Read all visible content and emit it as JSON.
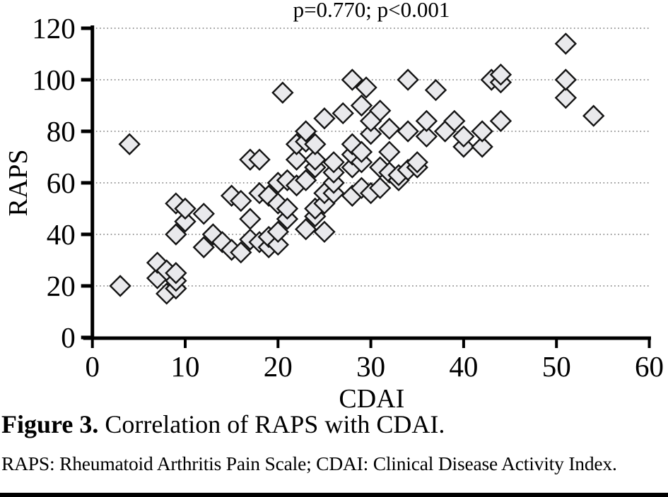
{
  "figure": {
    "title": "p=0.770; p<0.001",
    "caption_label": "Figure 3.",
    "caption_text": " Correlation of RAPS with CDAI.",
    "caption_note": "RAPS: Rheumatoid Arthritis Pain Scale; CDAI: Clinical Disease Activity Index."
  },
  "colors": {
    "marker_fill": "#e9e9ec",
    "marker_stroke": "#141414",
    "grid": "#777777",
    "axis": "#000000",
    "text": "#000000"
  },
  "chart_data": {
    "type": "scatter",
    "title": "p=0.770; p<0.001",
    "xlabel": "CDAI",
    "ylabel": "RAPS",
    "xlim": [
      0,
      60
    ],
    "ylim": [
      0,
      120
    ],
    "x_ticks": [
      0,
      10,
      20,
      30,
      40,
      50,
      60
    ],
    "y_ticks": [
      0,
      20,
      40,
      60,
      80,
      100,
      120
    ],
    "grid": "horizontal-dotted",
    "legend": "none",
    "marker_shape": "diamond",
    "points": [
      [
        3,
        20
      ],
      [
        4,
        75
      ],
      [
        7,
        23
      ],
      [
        7,
        29
      ],
      [
        8,
        17
      ],
      [
        8,
        26
      ],
      [
        9,
        19
      ],
      [
        9,
        22
      ],
      [
        9,
        25
      ],
      [
        9,
        40
      ],
      [
        9,
        52
      ],
      [
        10,
        45
      ],
      [
        10,
        50
      ],
      [
        12,
        35
      ],
      [
        12,
        48
      ],
      [
        13,
        40
      ],
      [
        14,
        37
      ],
      [
        15,
        34
      ],
      [
        15,
        55
      ],
      [
        16,
        33
      ],
      [
        16,
        53
      ],
      [
        17,
        38
      ],
      [
        17,
        46
      ],
      [
        17,
        69
      ],
      [
        18,
        37
      ],
      [
        18,
        56
      ],
      [
        18,
        69
      ],
      [
        19,
        35
      ],
      [
        19,
        39
      ],
      [
        19,
        55
      ],
      [
        20,
        36
      ],
      [
        20,
        41
      ],
      [
        20,
        52
      ],
      [
        20,
        60
      ],
      [
        20.5,
        95
      ],
      [
        21,
        46
      ],
      [
        21,
        50
      ],
      [
        21,
        61
      ],
      [
        22,
        59
      ],
      [
        22,
        69
      ],
      [
        22,
        75
      ],
      [
        23,
        42
      ],
      [
        23,
        61
      ],
      [
        23,
        76
      ],
      [
        23,
        80
      ],
      [
        24,
        47
      ],
      [
        24,
        50
      ],
      [
        24,
        66
      ],
      [
        24,
        69
      ],
      [
        24,
        75
      ],
      [
        25,
        41
      ],
      [
        25,
        52
      ],
      [
        25,
        56
      ],
      [
        25,
        85
      ],
      [
        26,
        56
      ],
      [
        26,
        60
      ],
      [
        26,
        64
      ],
      [
        26,
        68
      ],
      [
        27,
        87
      ],
      [
        28,
        55
      ],
      [
        28,
        66
      ],
      [
        28,
        71
      ],
      [
        28,
        75
      ],
      [
        28,
        100
      ],
      [
        29,
        58
      ],
      [
        29,
        68
      ],
      [
        29,
        72
      ],
      [
        29,
        90
      ],
      [
        29.5,
        97
      ],
      [
        30,
        56
      ],
      [
        30,
        79
      ],
      [
        30,
        84
      ],
      [
        31,
        58
      ],
      [
        31,
        66
      ],
      [
        31,
        88
      ],
      [
        32,
        64
      ],
      [
        32,
        72
      ],
      [
        32,
        81
      ],
      [
        33,
        61
      ],
      [
        33,
        63
      ],
      [
        34,
        65
      ],
      [
        34,
        80
      ],
      [
        34,
        100
      ],
      [
        35,
        66
      ],
      [
        35,
        68
      ],
      [
        36,
        78
      ],
      [
        36,
        84
      ],
      [
        37,
        96
      ],
      [
        38,
        80
      ],
      [
        39,
        84
      ],
      [
        40,
        74
      ],
      [
        40,
        78
      ],
      [
        42,
        74
      ],
      [
        42,
        80
      ],
      [
        43,
        100
      ],
      [
        44,
        84
      ],
      [
        44,
        99
      ],
      [
        44,
        102
      ],
      [
        51,
        93
      ],
      [
        51,
        100
      ],
      [
        51,
        114
      ],
      [
        54,
        86
      ]
    ]
  }
}
